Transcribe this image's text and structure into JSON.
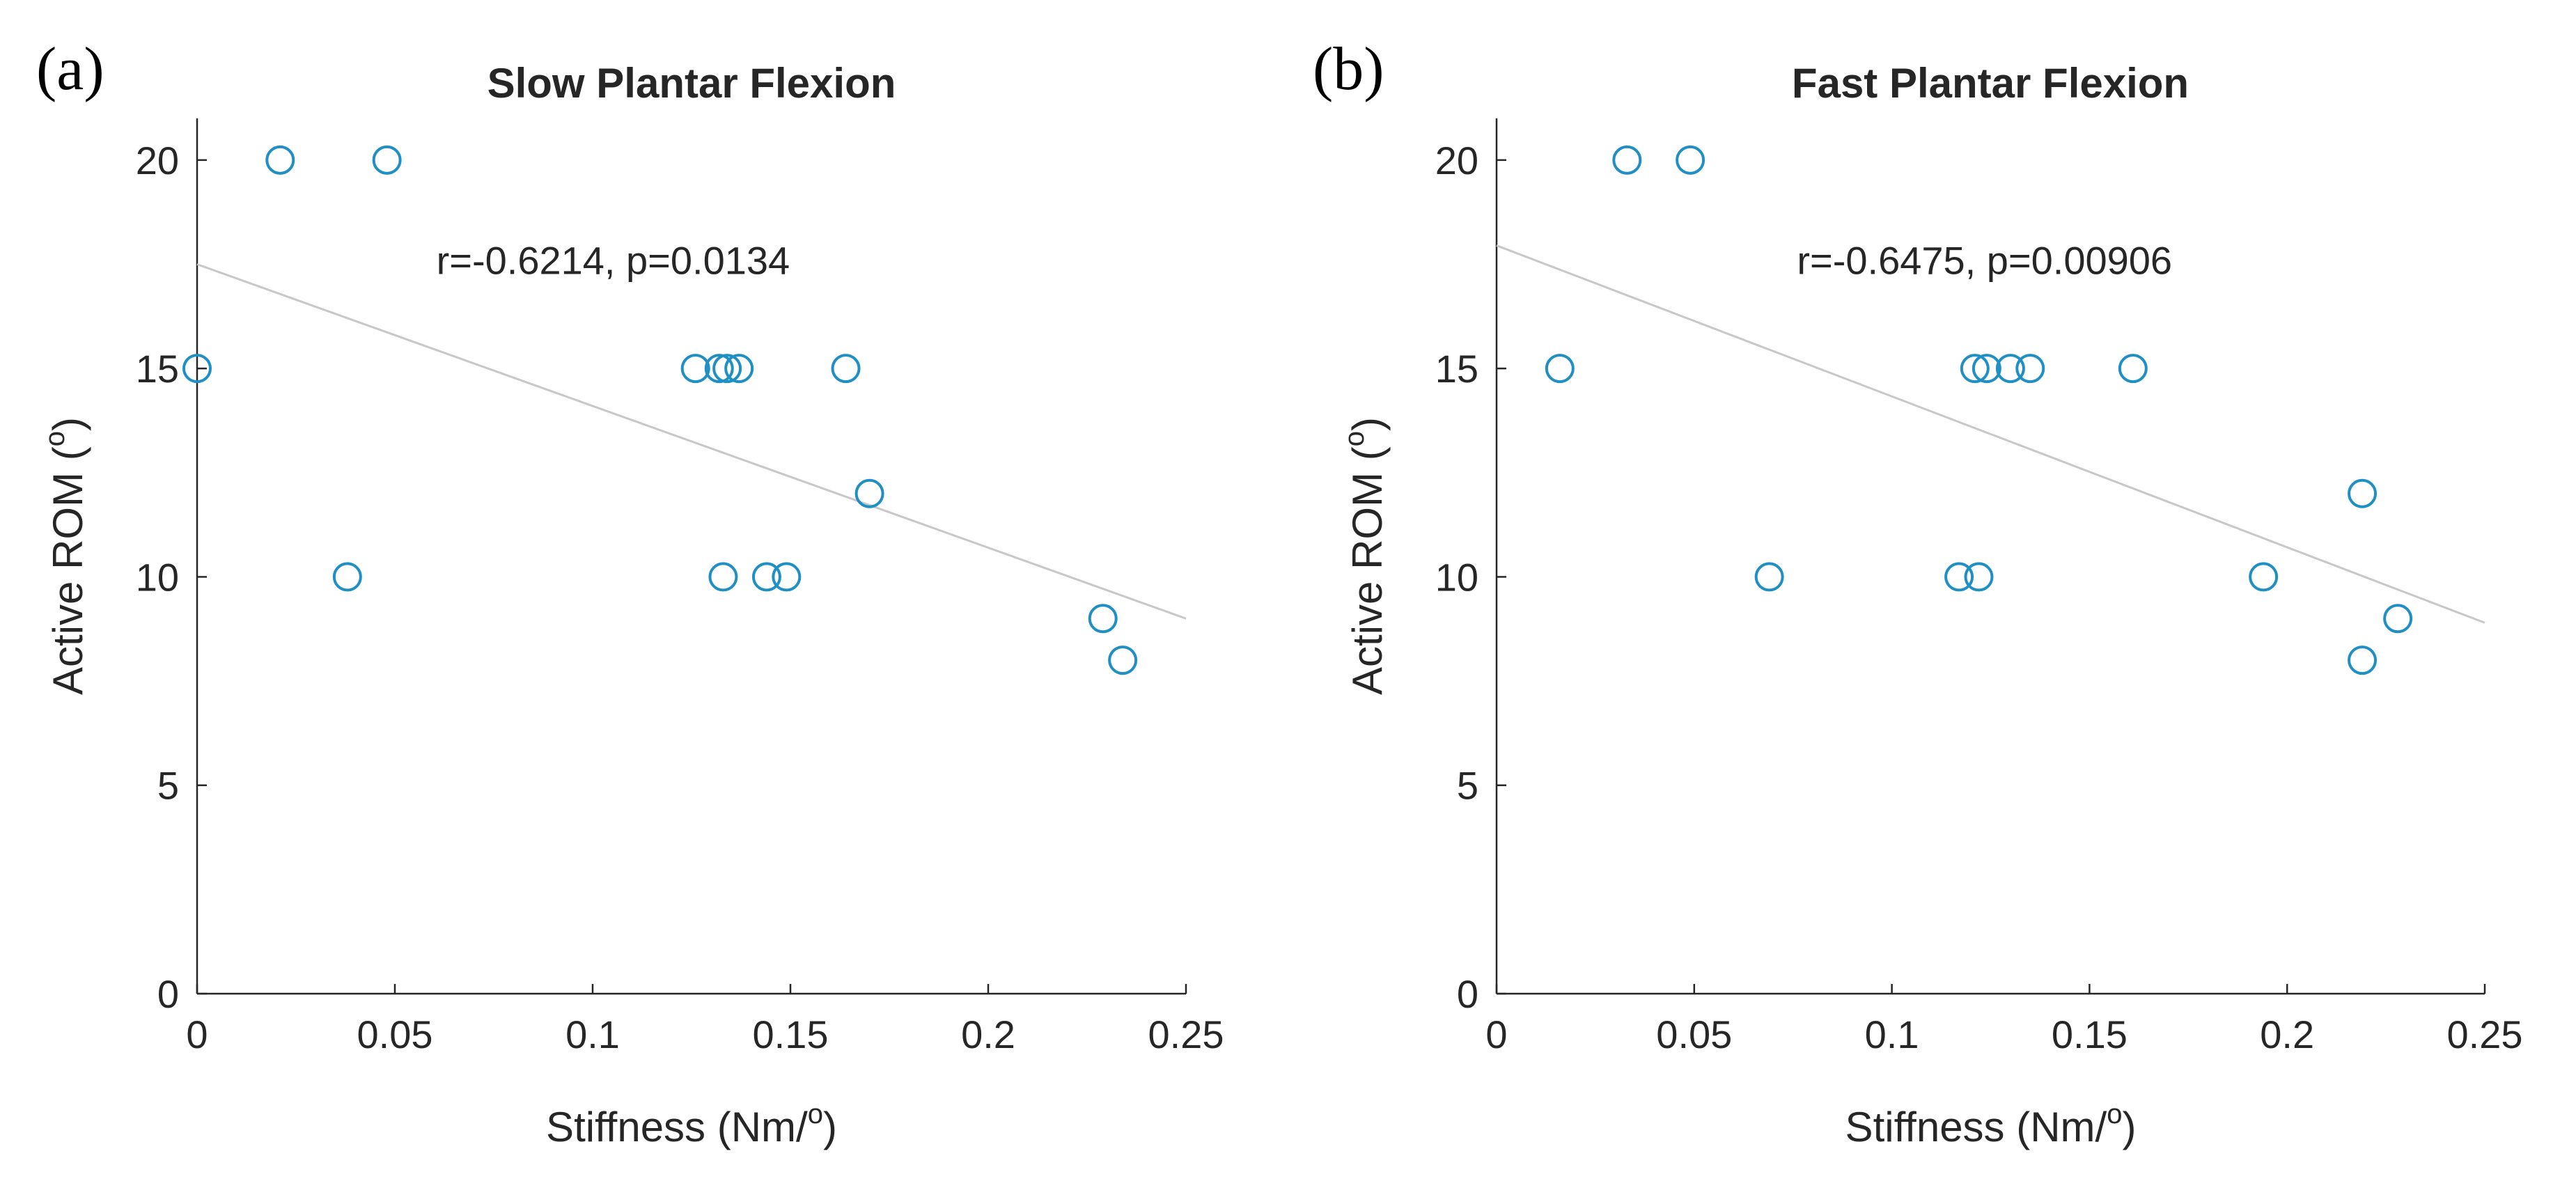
{
  "chart_data": [
    {
      "type": "scatter",
      "panel_label": "(a)",
      "title": "Slow Plantar Flexion",
      "xlabel": "Stiffness (Nm/",
      "xlabel_sup": "o",
      "xlabel_end": ")",
      "ylabel": "Active ROM (",
      "ylabel_sup": "o",
      "ylabel_end": ")",
      "xlim": [
        0,
        0.25
      ],
      "ylim": [
        0,
        21
      ],
      "xticks": [
        0,
        0.05,
        0.1,
        0.15,
        0.2,
        0.25
      ],
      "xtick_labels": [
        "0",
        "0.05",
        "0.1",
        "0.15",
        "0.2",
        "0.25"
      ],
      "yticks": [
        0,
        5,
        10,
        15,
        20
      ],
      "ytick_labels": [
        "0",
        "5",
        "10",
        "15",
        "20"
      ],
      "points": [
        {
          "x": 0.0,
          "y": 15
        },
        {
          "x": 0.021,
          "y": 20
        },
        {
          "x": 0.048,
          "y": 20
        },
        {
          "x": 0.038,
          "y": 10
        },
        {
          "x": 0.126,
          "y": 15
        },
        {
          "x": 0.132,
          "y": 15
        },
        {
          "x": 0.134,
          "y": 15
        },
        {
          "x": 0.137,
          "y": 15
        },
        {
          "x": 0.164,
          "y": 15
        },
        {
          "x": 0.17,
          "y": 12
        },
        {
          "x": 0.133,
          "y": 10
        },
        {
          "x": 0.144,
          "y": 10
        },
        {
          "x": 0.149,
          "y": 10
        },
        {
          "x": 0.229,
          "y": 9
        },
        {
          "x": 0.234,
          "y": 8
        }
      ],
      "fit_line": {
        "x": [
          0,
          0.25
        ],
        "y": [
          17.5,
          9.0
        ]
      },
      "annotation": "r=-0.6214, p=0.0134",
      "annotation_pos": {
        "x": 0.0605,
        "y": 17.6
      },
      "marker_color": "#1f8fc4",
      "line_color": "#c8c8c8"
    },
    {
      "type": "scatter",
      "panel_label": "(b)",
      "title": "Fast Plantar Flexion",
      "xlabel": "Stiffness (Nm/",
      "xlabel_sup": "o",
      "xlabel_end": ")",
      "ylabel": "Active ROM (",
      "ylabel_sup": "o",
      "ylabel_end": ")",
      "xlim": [
        0,
        0.25
      ],
      "ylim": [
        0,
        21
      ],
      "xticks": [
        0,
        0.05,
        0.1,
        0.15,
        0.2,
        0.25
      ],
      "xtick_labels": [
        "0",
        "0.05",
        "0.1",
        "0.15",
        "0.2",
        "0.25"
      ],
      "yticks": [
        0,
        5,
        10,
        15,
        20
      ],
      "ytick_labels": [
        "0",
        "5",
        "10",
        "15",
        "20"
      ],
      "points": [
        {
          "x": 0.016,
          "y": 15
        },
        {
          "x": 0.033,
          "y": 20
        },
        {
          "x": 0.049,
          "y": 20
        },
        {
          "x": 0.069,
          "y": 10
        },
        {
          "x": 0.117,
          "y": 10
        },
        {
          "x": 0.122,
          "y": 10
        },
        {
          "x": 0.121,
          "y": 15
        },
        {
          "x": 0.124,
          "y": 15
        },
        {
          "x": 0.13,
          "y": 15
        },
        {
          "x": 0.135,
          "y": 15
        },
        {
          "x": 0.161,
          "y": 15
        },
        {
          "x": 0.194,
          "y": 10
        },
        {
          "x": 0.219,
          "y": 12
        },
        {
          "x": 0.219,
          "y": 8
        },
        {
          "x": 0.228,
          "y": 9
        }
      ],
      "fit_line": {
        "x": [
          0,
          0.25
        ],
        "y": [
          17.95,
          8.9
        ]
      },
      "annotation": "r=-0.6475, p=0.00906",
      "annotation_pos": {
        "x": 0.076,
        "y": 17.6
      },
      "marker_color": "#1f8fc4",
      "line_color": "#c8c8c8"
    }
  ]
}
